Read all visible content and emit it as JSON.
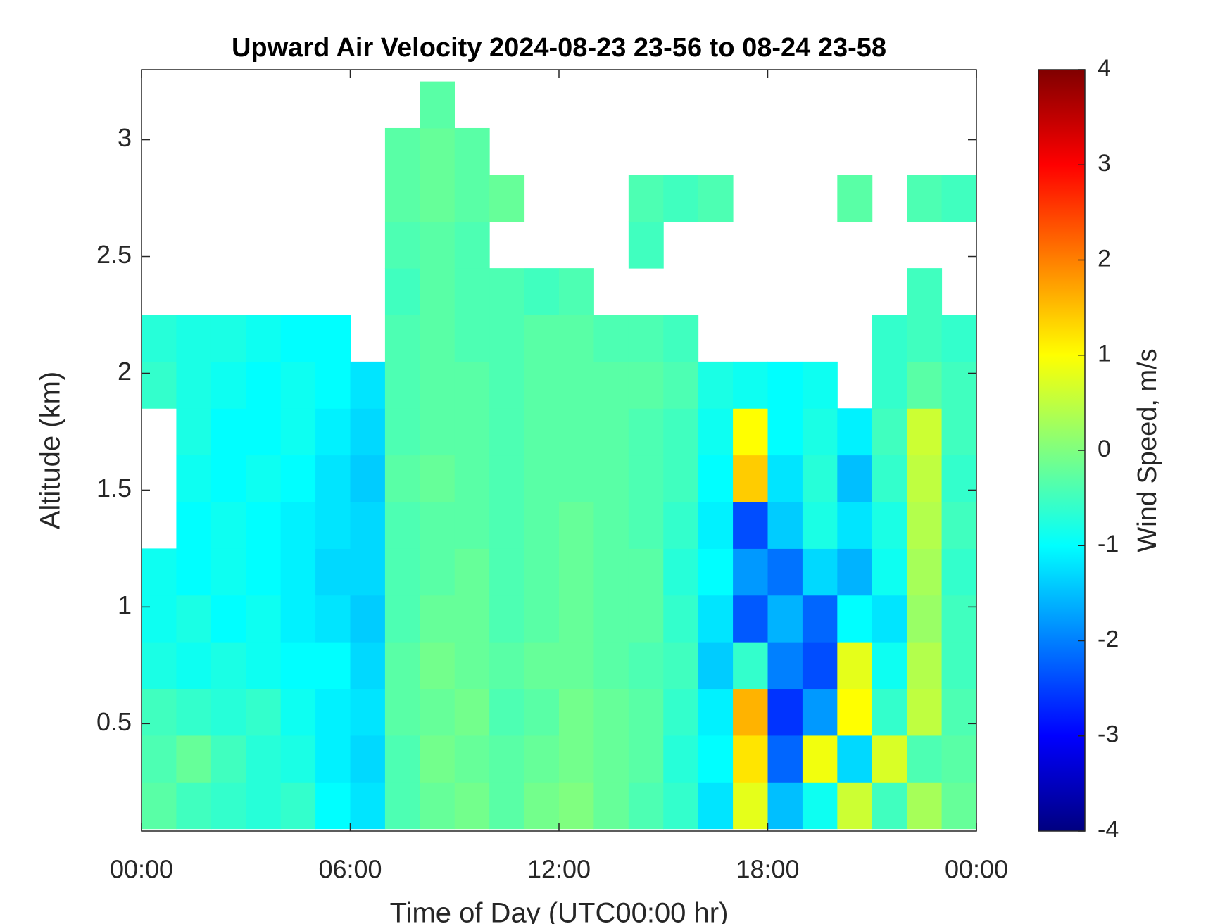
{
  "chart_data": {
    "type": "heatmap",
    "title": "Upward Air Velocity 2024-08-23 23-56 to 08-24 23-58",
    "x_label": "Time of Day (UTC00:00 hr)",
    "y_label": "Altitude (km)",
    "colorbar_label": "Wind Speed, m/s",
    "colormap": "jet",
    "x": [
      0.5,
      1.5,
      2.5,
      3.5,
      4.5,
      5.5,
      6.5,
      7.5,
      8.5,
      9.5,
      10.5,
      11.5,
      12.5,
      13.5,
      14.5,
      15.5,
      16.5,
      17.5,
      18.5,
      19.5,
      20.5,
      21.5,
      22.5,
      23.5
    ],
    "y": [
      0.15,
      0.35,
      0.55,
      0.75,
      0.95,
      1.15,
      1.35,
      1.55,
      1.75,
      1.95,
      2.15,
      2.35,
      2.55,
      2.75,
      2.95,
      3.15
    ],
    "z": [
      [
        -0.3,
        -0.5,
        -0.6,
        -0.7,
        -0.6,
        -1.0,
        -1.2,
        -0.4,
        -0.2,
        -0.1,
        -0.3,
        -0.1,
        0.0,
        -0.2,
        -0.4,
        -0.6,
        -1.2,
        0.8,
        -1.5,
        -0.9,
        0.6,
        -0.5,
        0.3,
        -0.2
      ],
      [
        -0.4,
        -0.2,
        -0.5,
        -0.7,
        -0.8,
        -1.1,
        -1.3,
        -0.4,
        -0.1,
        -0.2,
        -0.3,
        -0.2,
        -0.1,
        -0.2,
        -0.3,
        -0.7,
        -1.0,
        1.2,
        -2.2,
        0.9,
        -1.3,
        0.7,
        -0.4,
        -0.3
      ],
      [
        -0.5,
        -0.6,
        -0.7,
        -0.6,
        -0.9,
        -1.1,
        -1.2,
        -0.3,
        -0.2,
        -0.1,
        -0.4,
        -0.3,
        -0.1,
        -0.2,
        -0.3,
        -0.6,
        -1.1,
        1.6,
        -2.6,
        -1.8,
        1.0,
        -0.6,
        0.5,
        -0.4
      ],
      [
        -0.8,
        -0.9,
        -0.8,
        -0.9,
        -1.0,
        -1.0,
        -1.3,
        -0.3,
        -0.1,
        -0.2,
        -0.3,
        -0.2,
        -0.2,
        -0.3,
        -0.4,
        -0.5,
        -1.4,
        -0.6,
        -2.0,
        -2.4,
        0.8,
        -0.9,
        0.4,
        -0.5
      ],
      [
        -0.9,
        -0.8,
        -1.0,
        -0.9,
        -1.1,
        -1.2,
        -1.4,
        -0.4,
        -0.2,
        -0.2,
        -0.4,
        -0.3,
        -0.2,
        -0.3,
        -0.3,
        -0.6,
        -1.2,
        -2.3,
        -1.6,
        -2.2,
        -1.0,
        -1.2,
        0.2,
        -0.5
      ],
      [
        -0.9,
        -1.0,
        -0.9,
        -1.0,
        -1.1,
        -1.3,
        -1.3,
        -0.4,
        -0.3,
        -0.2,
        -0.4,
        -0.3,
        -0.2,
        -0.3,
        -0.3,
        -0.7,
        -1.0,
        -1.8,
        -2.1,
        -1.3,
        -1.6,
        -0.9,
        0.3,
        -0.6
      ],
      [
        null,
        -1.0,
        -0.9,
        -1.0,
        -1.1,
        -1.2,
        -1.3,
        -0.4,
        -0.3,
        -0.3,
        -0.4,
        -0.3,
        -0.2,
        -0.3,
        -0.4,
        -0.6,
        -1.1,
        -2.4,
        -1.4,
        -0.8,
        -1.2,
        -0.8,
        0.4,
        -0.5
      ],
      [
        null,
        -0.9,
        -1.0,
        -0.9,
        -1.0,
        -1.2,
        -1.4,
        -0.3,
        -0.2,
        -0.3,
        -0.4,
        -0.3,
        -0.3,
        -0.3,
        -0.4,
        -0.5,
        -1.0,
        1.4,
        -1.2,
        -0.7,
        -1.5,
        -0.6,
        0.5,
        -0.6
      ],
      [
        null,
        -0.8,
        -1.0,
        -1.0,
        -0.9,
        -1.1,
        -1.3,
        -0.4,
        -0.3,
        -0.3,
        -0.4,
        -0.3,
        -0.3,
        -0.3,
        -0.4,
        -0.5,
        -0.9,
        1.0,
        -1.0,
        -0.8,
        -1.1,
        -0.5,
        0.6,
        -0.5
      ],
      [
        -0.6,
        -0.8,
        -0.9,
        -1.0,
        -0.9,
        -1.0,
        -1.2,
        -0.4,
        -0.3,
        -0.3,
        -0.4,
        -0.3,
        -0.3,
        -0.3,
        -0.3,
        -0.4,
        -0.8,
        -0.9,
        -1.0,
        -0.9,
        null,
        -0.6,
        -0.3,
        -0.5
      ],
      [
        -0.7,
        -0.8,
        -0.8,
        -0.9,
        -1.0,
        -1.0,
        null,
        -0.4,
        -0.3,
        -0.4,
        -0.4,
        -0.3,
        -0.3,
        -0.4,
        -0.4,
        -0.5,
        null,
        null,
        null,
        null,
        null,
        -0.6,
        -0.5,
        -0.6
      ],
      [
        null,
        null,
        null,
        null,
        null,
        null,
        null,
        -0.5,
        -0.3,
        -0.4,
        -0.4,
        -0.5,
        -0.4,
        null,
        null,
        null,
        null,
        null,
        null,
        null,
        null,
        null,
        -0.5,
        null
      ],
      [
        null,
        null,
        null,
        null,
        null,
        null,
        null,
        -0.4,
        -0.3,
        -0.4,
        null,
        null,
        null,
        null,
        -0.5,
        null,
        null,
        null,
        null,
        null,
        null,
        null,
        null,
        null
      ],
      [
        null,
        null,
        null,
        null,
        null,
        null,
        null,
        -0.3,
        -0.2,
        -0.3,
        -0.2,
        null,
        null,
        null,
        -0.4,
        -0.5,
        -0.4,
        null,
        null,
        null,
        -0.3,
        null,
        -0.4,
        -0.5
      ],
      [
        null,
        null,
        null,
        null,
        null,
        null,
        null,
        -0.3,
        -0.2,
        -0.3,
        null,
        null,
        null,
        null,
        null,
        null,
        null,
        null,
        null,
        null,
        null,
        null,
        null,
        null
      ],
      [
        null,
        null,
        null,
        null,
        null,
        null,
        null,
        null,
        -0.3,
        null,
        null,
        null,
        null,
        null,
        null,
        null,
        null,
        null,
        null,
        null,
        null,
        null,
        null,
        null
      ]
    ],
    "xlim": [
      0,
      24
    ],
    "ylim": [
      0.04,
      3.3
    ],
    "clim": [
      -4,
      4
    ],
    "xticks": [
      {
        "value": 0,
        "label": "00:00"
      },
      {
        "value": 6,
        "label": "06:00"
      },
      {
        "value": 12,
        "label": "12:00"
      },
      {
        "value": 18,
        "label": "18:00"
      },
      {
        "value": 24,
        "label": "00:00"
      }
    ],
    "yticks": [
      0.5,
      1,
      1.5,
      2,
      2.5,
      3
    ],
    "cticks": [
      -4,
      -3,
      -2,
      -1,
      0,
      1,
      2,
      3,
      4
    ]
  }
}
